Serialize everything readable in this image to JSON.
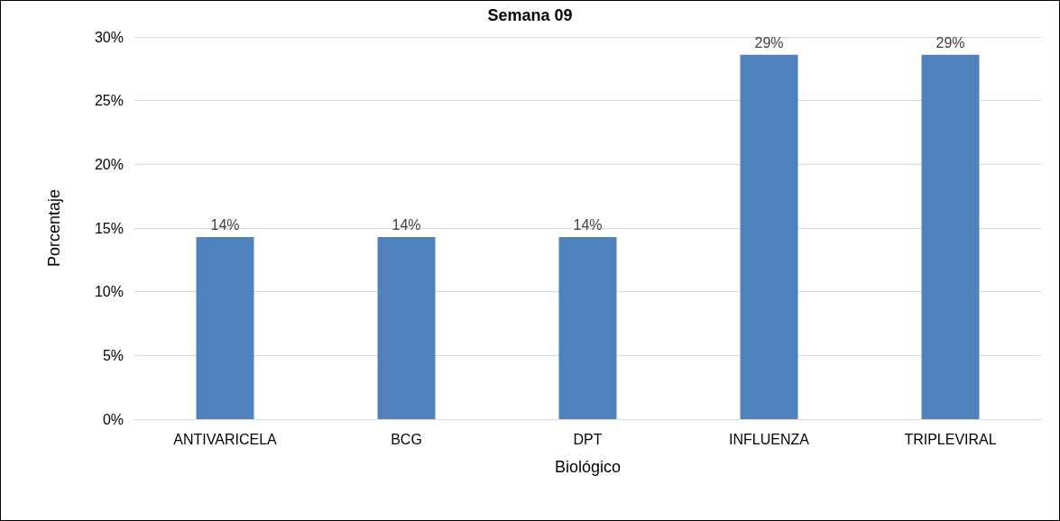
{
  "chart_data": {
    "type": "bar",
    "title": "Semana 09",
    "xlabel": "Biológico",
    "ylabel": "Porcentaje",
    "categories": [
      "ANTIVARICELA",
      "BCG",
      "DPT",
      "INFLUENZA",
      "TRIPLEVIRAL"
    ],
    "values": [
      14.3,
      14.3,
      14.3,
      28.6,
      28.6
    ],
    "value_labels": [
      "14%",
      "14%",
      "14%",
      "29%",
      "29%"
    ],
    "color": "#4f81bd",
    "ylim": [
      0,
      30
    ],
    "yticks": [
      {
        "value": 0,
        "label": "0%"
      },
      {
        "value": 5,
        "label": "5%"
      },
      {
        "value": 10,
        "label": "10%"
      },
      {
        "value": 15,
        "label": "15%"
      },
      {
        "value": 20,
        "label": "20%"
      },
      {
        "value": 25,
        "label": "25%"
      },
      {
        "value": 30,
        "label": "30%"
      }
    ],
    "grid": "y"
  }
}
